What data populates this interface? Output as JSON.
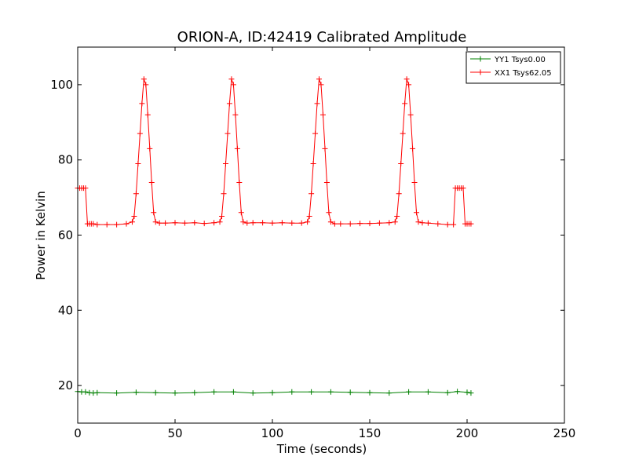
{
  "chart_data": {
    "type": "line",
    "title": "ORION-A, ID:42419 Calibrated Amplitude",
    "xlabel": "Time (seconds)",
    "ylabel": "Power in Kelvin",
    "xlim": [
      0,
      250
    ],
    "ylim": [
      10,
      110
    ],
    "xticks": [
      0,
      50,
      100,
      150,
      200,
      250
    ],
    "yticks": [
      20,
      40,
      60,
      80,
      100
    ],
    "grid": false,
    "legend_position": "top-right",
    "series": [
      {
        "name": "YY1 Tsys0.00",
        "color": "#008000",
        "marker": "plus",
        "x": [
          0,
          2,
          4,
          6,
          8,
          10,
          20,
          30,
          40,
          50,
          60,
          70,
          80,
          90,
          100,
          110,
          120,
          130,
          140,
          150,
          160,
          170,
          180,
          190,
          195,
          200,
          202
        ],
        "y": [
          18.4,
          18.3,
          18.3,
          18.1,
          18.0,
          18.1,
          18.0,
          18.2,
          18.1,
          18.0,
          18.1,
          18.3,
          18.3,
          18.0,
          18.1,
          18.3,
          18.3,
          18.3,
          18.2,
          18.1,
          18.0,
          18.3,
          18.3,
          18.1,
          18.4,
          18.2,
          18.0
        ]
      },
      {
        "name": "XX1 Tsys62.05",
        "color": "#ff0000",
        "marker": "plus",
        "x": [
          0,
          1,
          2,
          3,
          4,
          5,
          6,
          7,
          8,
          10,
          15,
          20,
          25,
          28,
          29,
          30,
          31,
          32,
          33,
          34,
          35,
          36,
          37,
          38,
          39,
          40,
          42,
          45,
          50,
          55,
          60,
          65,
          70,
          73,
          74,
          75,
          76,
          77,
          78,
          79,
          80,
          81,
          82,
          83,
          84,
          85,
          87,
          90,
          95,
          100,
          105,
          110,
          115,
          118,
          119,
          120,
          121,
          122,
          123,
          124,
          125,
          126,
          127,
          128,
          129,
          130,
          132,
          135,
          140,
          145,
          150,
          155,
          160,
          163,
          164,
          165,
          166,
          167,
          168,
          169,
          170,
          171,
          172,
          173,
          174,
          175,
          177,
          180,
          185,
          190,
          193,
          194,
          195,
          196,
          197,
          198,
          199,
          200,
          201,
          202
        ],
        "y": [
          72.5,
          72.5,
          72.5,
          72.5,
          72.5,
          63.0,
          63.0,
          63.0,
          63.0,
          62.8,
          62.8,
          62.8,
          63.0,
          63.5,
          65.0,
          71.0,
          79.0,
          87.0,
          95.0,
          101.5,
          100.0,
          92.0,
          83.0,
          74.0,
          66.0,
          63.5,
          63.2,
          63.2,
          63.3,
          63.2,
          63.3,
          63.1,
          63.3,
          63.5,
          65.0,
          71.0,
          79.0,
          87.0,
          95.0,
          101.5,
          100.0,
          92.0,
          83.0,
          74.0,
          66.0,
          63.5,
          63.2,
          63.3,
          63.3,
          63.2,
          63.3,
          63.2,
          63.2,
          63.5,
          65.0,
          71.0,
          79.0,
          87.0,
          95.0,
          101.5,
          100.0,
          92.0,
          83.0,
          74.0,
          66.0,
          63.5,
          63.0,
          63.0,
          63.0,
          63.1,
          63.1,
          63.2,
          63.3,
          63.5,
          65.0,
          71.0,
          79.0,
          87.0,
          95.0,
          101.5,
          100.0,
          92.0,
          83.0,
          74.0,
          66.0,
          63.5,
          63.3,
          63.2,
          63.0,
          62.8,
          62.8,
          72.5,
          72.5,
          72.5,
          72.5,
          72.5,
          63.0,
          63.0,
          63.0,
          63.0
        ]
      }
    ]
  }
}
